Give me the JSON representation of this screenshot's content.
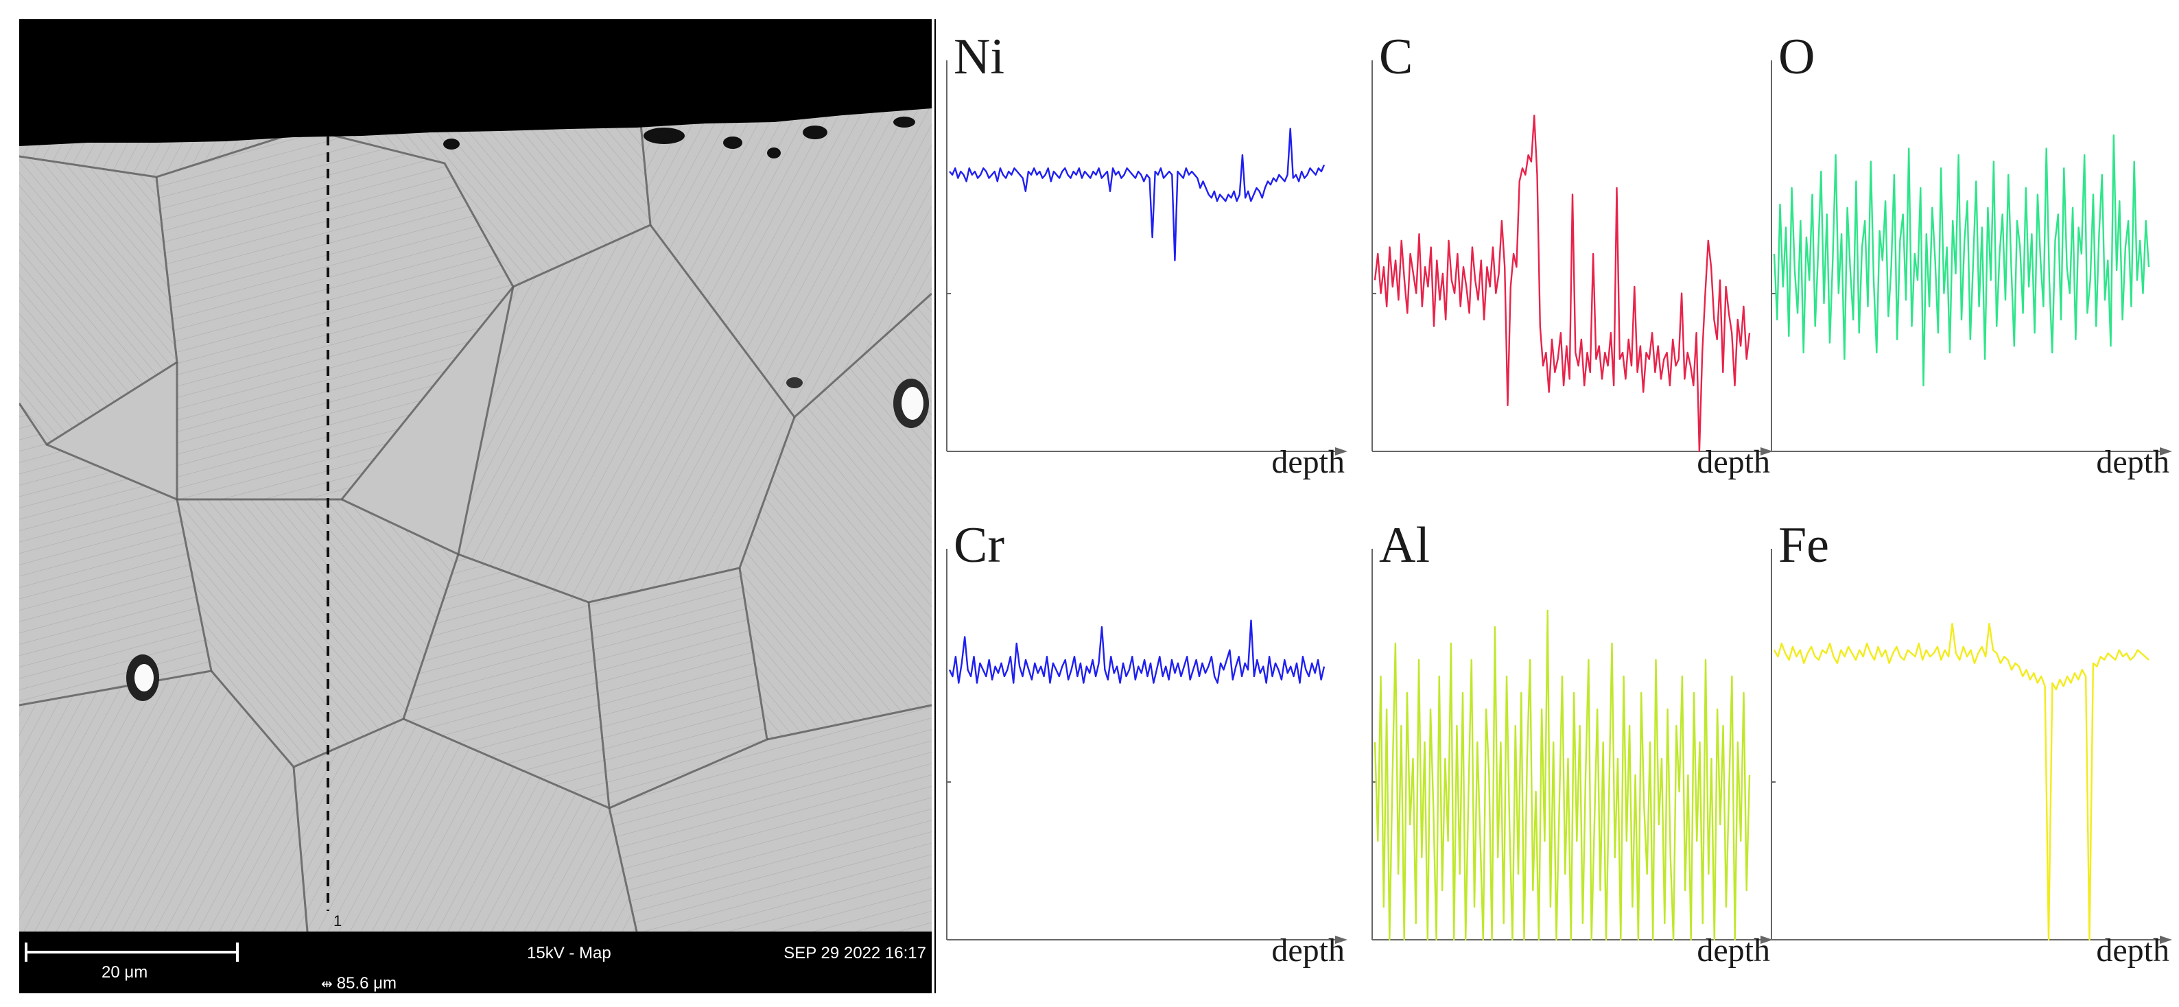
{
  "micrograph": {
    "scale_bar_label": "20 μm",
    "field_width": "85.6 μm",
    "field_width_icon": "horizontal-field-width-icon",
    "beam_mode": "15kV - Map",
    "timestamp": "SEP 29 2022 16:17",
    "linescan_marker": "1"
  },
  "chart_data": [
    {
      "type": "line",
      "title": "Ni",
      "xlabel": "depth",
      "ylabel": "",
      "color": "#1f1ff2",
      "x_range": [
        0,
        100
      ],
      "ylim": [
        0,
        100
      ],
      "series": [
        {
          "values": [
            85,
            84,
            86,
            83,
            85,
            84,
            82,
            86,
            84,
            85,
            83,
            84,
            86,
            85,
            83,
            84,
            85,
            82,
            86,
            84,
            83,
            85,
            84,
            86,
            85,
            84,
            83,
            79,
            85,
            84,
            86,
            84,
            85,
            83,
            84,
            86,
            82,
            85,
            84,
            83,
            85,
            86,
            84,
            83,
            85,
            84,
            86,
            83,
            85,
            84,
            83,
            85,
            84,
            86,
            83,
            84,
            85,
            79,
            86,
            84,
            85,
            83,
            84,
            86,
            85,
            84,
            83,
            85,
            84,
            82,
            84,
            83,
            65,
            85,
            84,
            86,
            83,
            84,
            85,
            84,
            58,
            85,
            84,
            83,
            86,
            84,
            85,
            84,
            83,
            80,
            82,
            80,
            78,
            77,
            79,
            76,
            78,
            77,
            76,
            78,
            77,
            79,
            76,
            78,
            90,
            77,
            79,
            76,
            78,
            80,
            79,
            77,
            80,
            82,
            81,
            83,
            82,
            84,
            83,
            82,
            84,
            98,
            83,
            84,
            82,
            85,
            83,
            84,
            86,
            85,
            84,
            86,
            85,
            87
          ]
        }
      ]
    },
    {
      "type": "line",
      "title": "C",
      "xlabel": "depth",
      "ylabel": "",
      "color": "#e8234a",
      "x_range": [
        0,
        100
      ],
      "ylim": [
        0,
        100
      ],
      "series": [
        {
          "values": [
            52,
            60,
            48,
            56,
            44,
            62,
            50,
            58,
            46,
            64,
            52,
            42,
            60,
            54,
            48,
            66,
            44,
            56,
            50,
            62,
            38,
            58,
            46,
            54,
            40,
            64,
            52,
            48,
            60,
            44,
            56,
            50,
            42,
            62,
            52,
            46,
            58,
            40,
            56,
            50,
            62,
            48,
            54,
            70,
            56,
            14,
            50,
            60,
            56,
            82,
            86,
            84,
            90,
            88,
            102,
            84,
            38,
            26,
            30,
            18,
            34,
            24,
            28,
            36,
            20,
            32,
            22,
            78,
            30,
            26,
            34,
            20,
            30,
            24,
            60,
            28,
            32,
            22,
            30,
            26,
            36,
            20,
            80,
            28,
            30,
            22,
            34,
            26,
            50,
            24,
            32,
            18,
            30,
            28,
            36,
            24,
            32,
            22,
            28,
            30,
            20,
            34,
            26,
            28,
            48,
            22,
            30,
            26,
            20,
            36,
            0,
            30,
            48,
            64,
            56,
            40,
            34,
            52,
            24,
            50,
            42,
            36,
            20,
            40,
            32,
            44,
            28,
            36
          ]
        }
      ]
    },
    {
      "type": "line",
      "title": "O",
      "xlabel": "depth",
      "ylabel": "",
      "color": "#2de58a",
      "x_range": [
        0,
        100
      ],
      "ylim": [
        0,
        100
      ],
      "series": [
        {
          "values": [
            60,
            40,
            75,
            50,
            68,
            35,
            80,
            55,
            42,
            70,
            30,
            65,
            52,
            78,
            38,
            60,
            85,
            45,
            72,
            33,
            58,
            90,
            48,
            66,
            28,
            74,
            55,
            40,
            82,
            36,
            62,
            70,
            44,
            88,
            52,
            30,
            67,
            58,
            76,
            41,
            56,
            84,
            34,
            64,
            72,
            46,
            92,
            38,
            60,
            52,
            80,
            20,
            66,
            44,
            74,
            58,
            36,
            86,
            48,
            62,
            30,
            70,
            54,
            90,
            40,
            64,
            76,
            34,
            58,
            82,
            44,
            68,
            28,
            74,
            52,
            88,
            38,
            60,
            72,
            46,
            84,
            56,
            32,
            70,
            62,
            42,
            80,
            50,
            66,
            36,
            78,
            58,
            44,
            92,
            52,
            30,
            64,
            72,
            40,
            86,
            56,
            48,
            74,
            34,
            68,
            60,
            90,
            42,
            52,
            78,
            38,
            66,
            84,
            46,
            58,
            32,
            96,
            55,
            76,
            40,
            62,
            70,
            44,
            88,
            52,
            64,
            48,
            70,
            56
          ]
        }
      ]
    },
    {
      "type": "line",
      "title": "Cr",
      "xlabel": "depth",
      "ylabel": "",
      "color": "#1f1ff2",
      "x_range": [
        0,
        100
      ],
      "ylim": [
        0,
        100
      ],
      "series": [
        {
          "values": [
            82,
            80,
            86,
            78,
            84,
            92,
            82,
            80,
            86,
            78,
            84,
            82,
            80,
            85,
            79,
            83,
            81,
            84,
            80,
            82,
            86,
            78,
            90,
            83,
            80,
            85,
            82,
            79,
            84,
            81,
            83,
            80,
            86,
            78,
            84,
            82,
            80,
            83,
            85,
            79,
            82,
            86,
            80,
            84,
            78,
            83,
            81,
            85,
            80,
            84,
            95,
            82,
            79,
            86,
            81,
            83,
            78,
            84,
            80,
            82,
            86,
            79,
            83,
            81,
            85,
            80,
            84,
            78,
            82,
            86,
            80,
            83,
            79,
            85,
            81,
            84,
            80,
            83,
            86,
            79,
            82,
            85,
            80,
            84,
            81,
            83,
            86,
            80,
            78,
            84,
            82,
            85,
            88,
            79,
            83,
            86,
            80,
            84,
            82,
            97,
            80,
            85,
            81,
            83,
            78,
            86,
            80,
            84,
            82,
            79,
            85,
            81,
            83,
            80,
            84,
            78,
            86,
            82,
            80,
            84,
            81,
            85,
            79,
            83
          ]
        }
      ]
    },
    {
      "type": "line",
      "title": "Al",
      "xlabel": "depth",
      "ylabel": "",
      "color": "#bfe82a",
      "x_range": [
        0,
        100
      ],
      "ylim": [
        0,
        100
      ],
      "series": [
        {
          "values": [
            60,
            30,
            80,
            10,
            70,
            0,
            50,
            90,
            20,
            65,
            0,
            75,
            35,
            55,
            5,
            85,
            25,
            60,
            0,
            70,
            40,
            0,
            80,
            15,
            55,
            30,
            90,
            0,
            65,
            20,
            75,
            0,
            45,
            85,
            10,
            60,
            30,
            0,
            70,
            50,
            0,
            95,
            25,
            60,
            5,
            80,
            35,
            0,
            65,
            20,
            75,
            0,
            55,
            85,
            15,
            45,
            0,
            70,
            30,
            100,
            10,
            60,
            0,
            40,
            80,
            20,
            55,
            0,
            75,
            30,
            65,
            5,
            50,
            85,
            0,
            35,
            70,
            15,
            60,
            0,
            45,
            90,
            25,
            55,
            0,
            80,
            30,
            65,
            10,
            50,
            0,
            75,
            40,
            20,
            60,
            0,
            85,
            35,
            55,
            5,
            70,
            25,
            0,
            65,
            45,
            80,
            15,
            50,
            0,
            75,
            30,
            60,
            5,
            85,
            20,
            55,
            0,
            70,
            35,
            65,
            10,
            45,
            80,
            0,
            60,
            30,
            75,
            15,
            50
          ]
        }
      ]
    },
    {
      "type": "line",
      "title": "Fe",
      "xlabel": "depth",
      "ylabel": "",
      "color": "#f2ec1a",
      "x_range": [
        0,
        100
      ],
      "ylim": [
        0,
        100
      ],
      "series": [
        {
          "values": [
            88,
            86,
            90,
            87,
            85,
            89,
            86,
            88,
            84,
            87,
            89,
            86,
            85,
            88,
            87,
            90,
            86,
            84,
            88,
            86,
            89,
            87,
            85,
            88,
            86,
            90,
            87,
            85,
            89,
            86,
            88,
            84,
            87,
            89,
            86,
            85,
            88,
            87,
            86,
            90,
            85,
            88,
            86,
            87,
            89,
            85,
            88,
            86,
            96,
            87,
            85,
            89,
            86,
            88,
            84,
            87,
            89,
            86,
            96,
            88,
            87,
            84,
            86,
            85,
            82,
            84,
            83,
            80,
            82,
            79,
            81,
            78,
            80,
            77,
            0,
            78,
            76,
            79,
            77,
            80,
            78,
            81,
            79,
            82,
            80,
            0,
            84,
            83,
            86,
            85,
            87,
            86,
            85,
            88,
            86,
            87,
            85,
            86,
            88,
            87,
            86,
            85
          ]
        }
      ]
    }
  ]
}
